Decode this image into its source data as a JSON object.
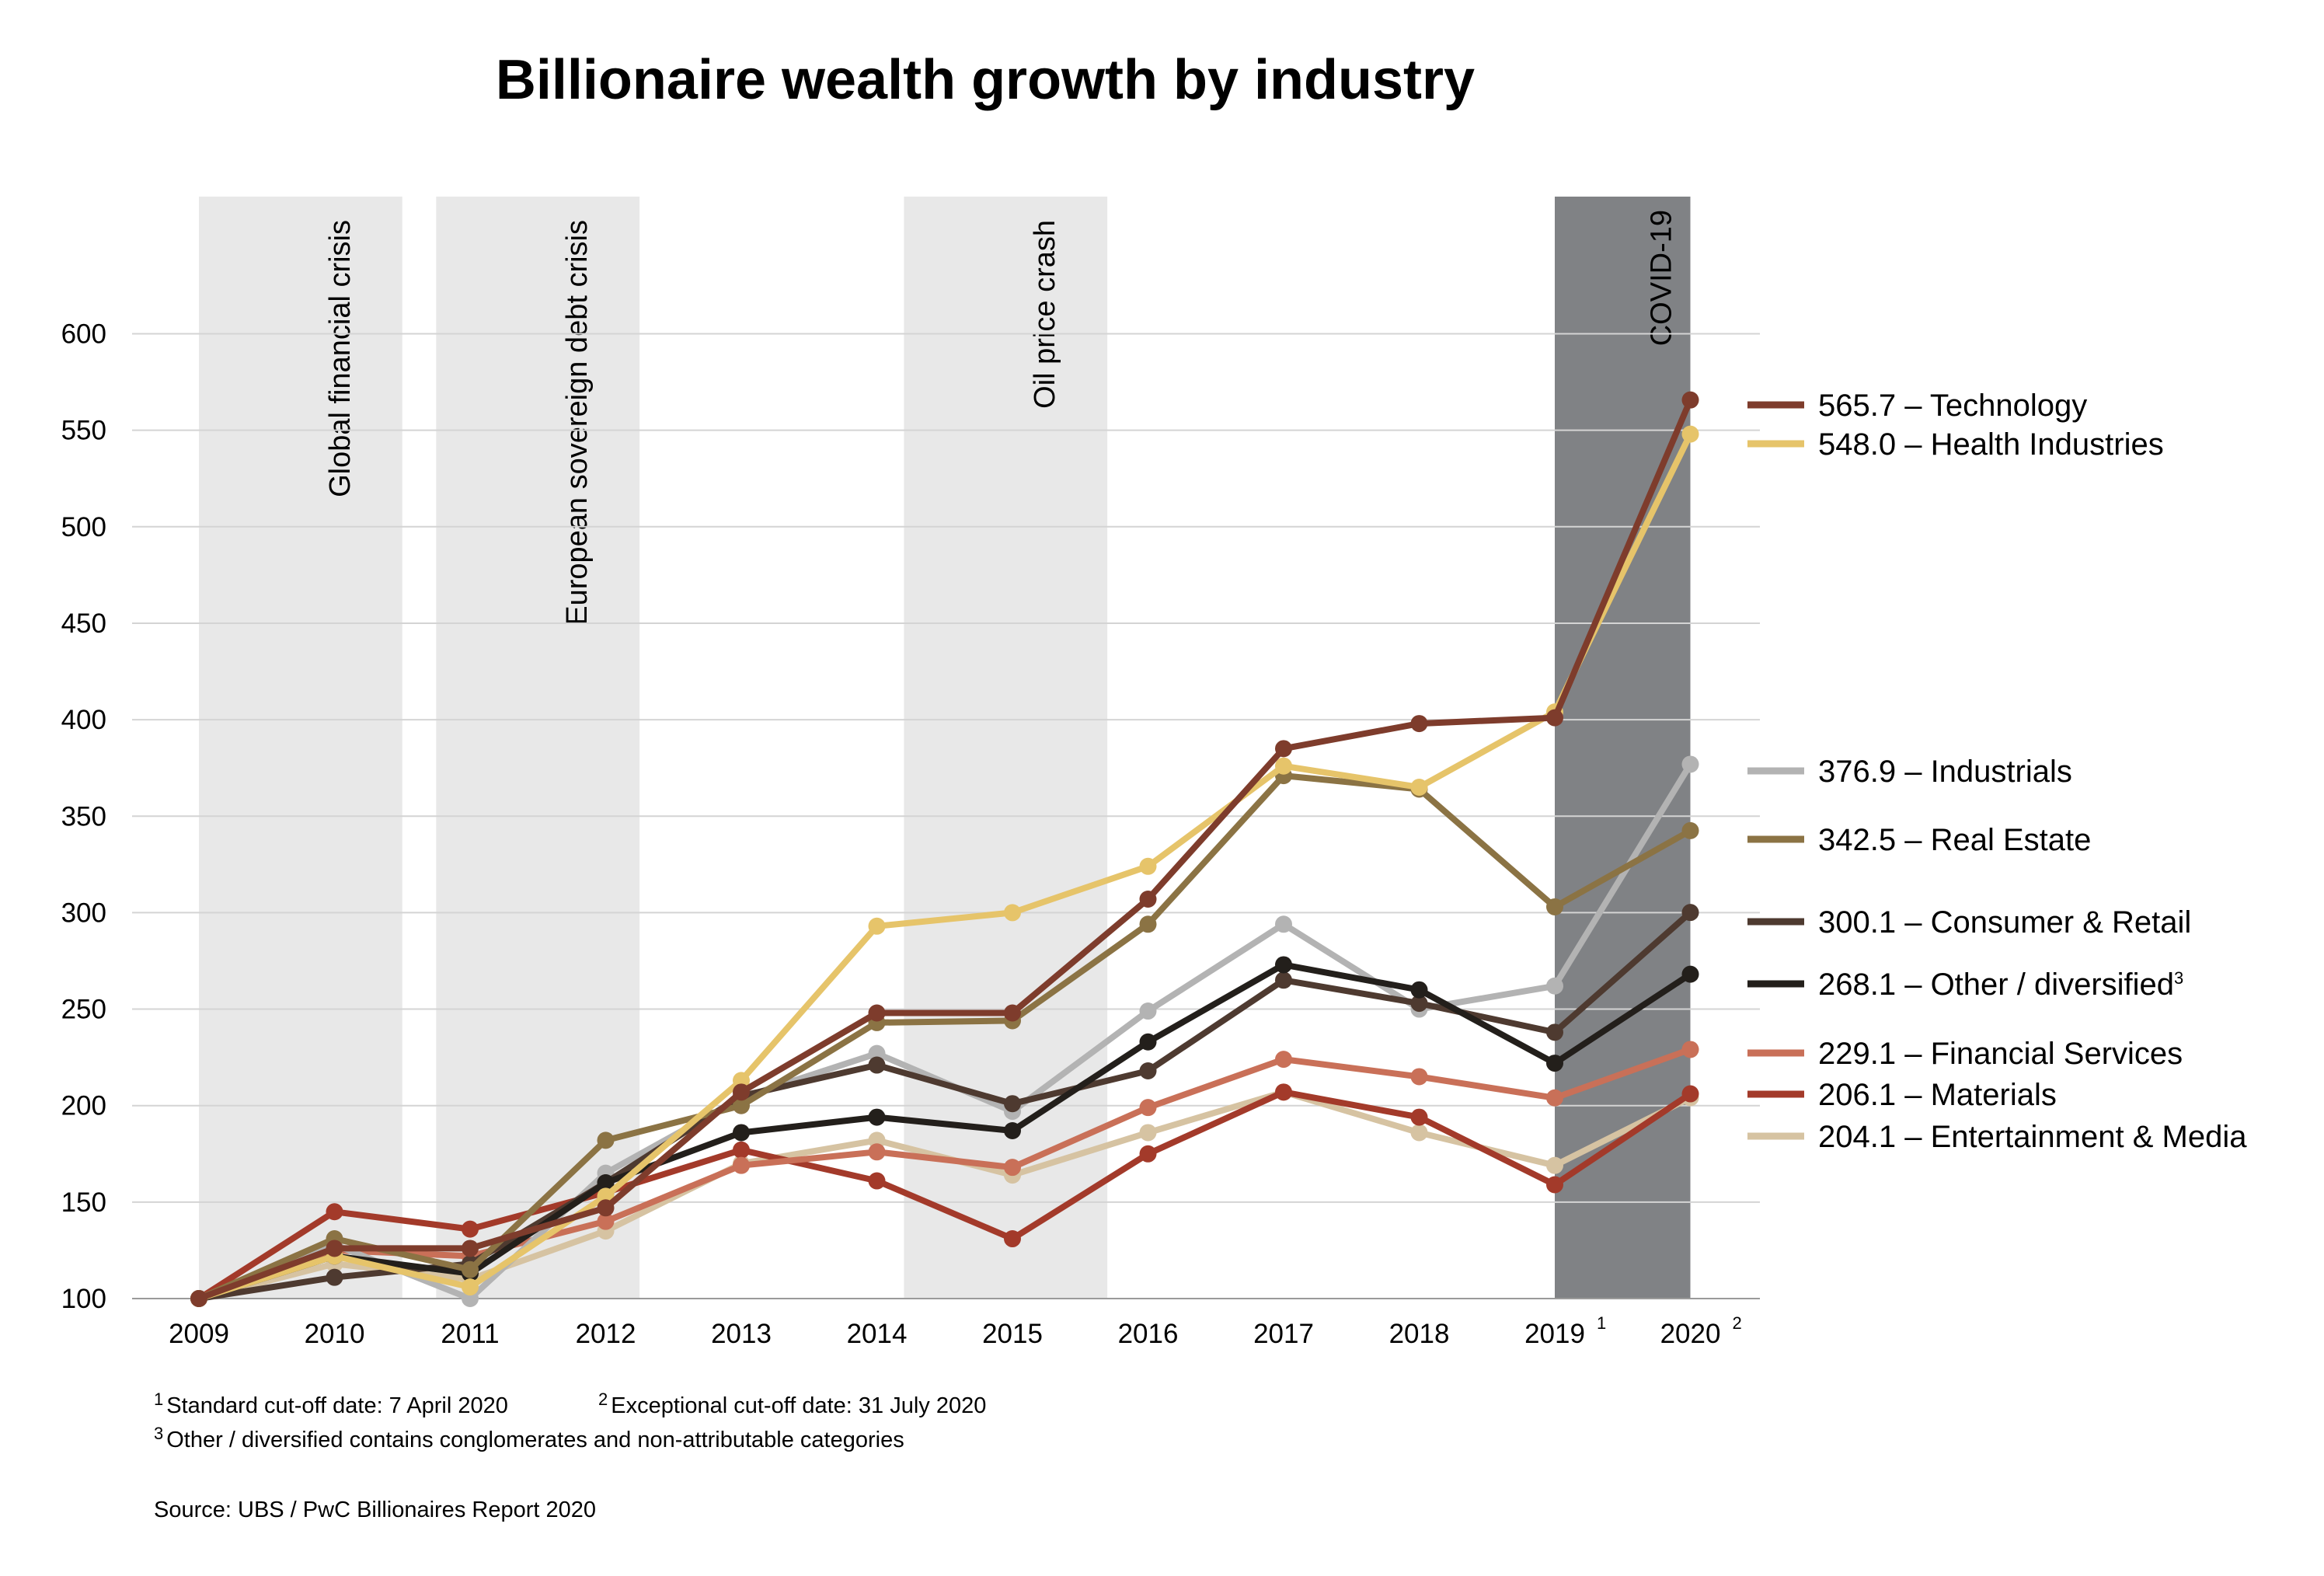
{
  "chart_data": {
    "type": "line",
    "title": "Billionaire wealth growth by industry",
    "x": [
      "2009",
      "2010",
      "2011",
      "2012",
      "2013",
      "2014",
      "2015",
      "2016",
      "2017",
      "2018",
      "2019",
      "2020"
    ],
    "x_superscripts": {
      "2019": "1",
      "2020": "2"
    },
    "y_ticks": [
      100,
      150,
      200,
      250,
      300,
      350,
      400,
      450,
      500,
      550,
      600
    ],
    "ylim": [
      100,
      600
    ],
    "grid": "horizontal",
    "legend_placement": "right",
    "bands": [
      {
        "label": "Global financial crisis",
        "from": 2009.0,
        "to": 2010.5,
        "color": "#e8e8e8"
      },
      {
        "label": "European sovereign debt crisis",
        "from": 2010.75,
        "to": 2012.25,
        "color": "#e8e8e8"
      },
      {
        "label": "Oil price crash",
        "from": 2014.2,
        "to": 2015.7,
        "color": "#e8e8e8"
      },
      {
        "label": "COVID-19",
        "from": 2019.0,
        "to": 2020.0,
        "color": "#808285"
      }
    ],
    "series": [
      {
        "name": "Entertainment & Media",
        "end_value": "204.1",
        "color": "#d6c3a2",
        "values": [
          100,
          118,
          110,
          135,
          170,
          182,
          164,
          186,
          207,
          186,
          169,
          204.1
        ]
      },
      {
        "name": "Materials",
        "end_value": "206.1",
        "color": "#a33a2a",
        "values": [
          100,
          145,
          136,
          155,
          177,
          161,
          131,
          175,
          207,
          194,
          159,
          206.1
        ]
      },
      {
        "name": "Financial Services",
        "end_value": "229.1",
        "color": "#c97058",
        "values": [
          100,
          125,
          122,
          140,
          169,
          176,
          168,
          199,
          224,
          215,
          204,
          229.1
        ]
      },
      {
        "name": "Industrials",
        "end_value": "376.9",
        "color": "#b3b3b3",
        "values": [
          100,
          128,
          100,
          165,
          204,
          227,
          197,
          249,
          294,
          250,
          262,
          376.9
        ]
      },
      {
        "name": "Consumer & Retail",
        "end_value": "300.1",
        "color": "#4e3a30",
        "values": [
          100,
          111,
          118,
          160,
          205,
          221,
          201,
          218,
          265,
          253,
          238,
          300.1
        ]
      },
      {
        "name": "Other / diversified",
        "end_value": "268.1",
        "sup": "3",
        "color": "#231f1b",
        "values": [
          100,
          122,
          113,
          160,
          186,
          194,
          187,
          233,
          273,
          260,
          222,
          268.1
        ]
      },
      {
        "name": "Real Estate",
        "end_value": "342.5",
        "color": "#8b7344",
        "values": [
          100,
          131,
          115,
          182,
          200,
          243,
          244,
          294,
          371,
          364,
          303,
          342.5
        ]
      },
      {
        "name": "Health Industries",
        "end_value": "548.0",
        "color": "#e6c46a",
        "values": [
          100,
          122,
          106,
          153,
          213,
          293,
          300,
          324,
          376,
          365,
          404,
          548.0
        ]
      },
      {
        "name": "Technology",
        "end_value": "565.7",
        "color": "#7e3c2c",
        "values": [
          100,
          126,
          126,
          147,
          207,
          248,
          248,
          307,
          385,
          398,
          401,
          565.7
        ]
      }
    ],
    "legend_order": [
      "Technology",
      "Health Industries",
      "Industrials",
      "Real Estate",
      "Consumer & Retail",
      "Other / diversified",
      "Financial Services",
      "Materials",
      "Entertainment & Media"
    ],
    "legend_label_sep": " – "
  },
  "footnotes": {
    "note1_mark": "1",
    "note1": "Standard cut-off date: 7 April 2020",
    "note2_mark": "2",
    "note2": "Exceptional cut-off date: 31 July 2020",
    "note3_mark": "3",
    "note3": "Other / diversified contains conglomerates and non-attributable categories",
    "source": "Source: UBS / PwC Billionaires Report 2020"
  }
}
